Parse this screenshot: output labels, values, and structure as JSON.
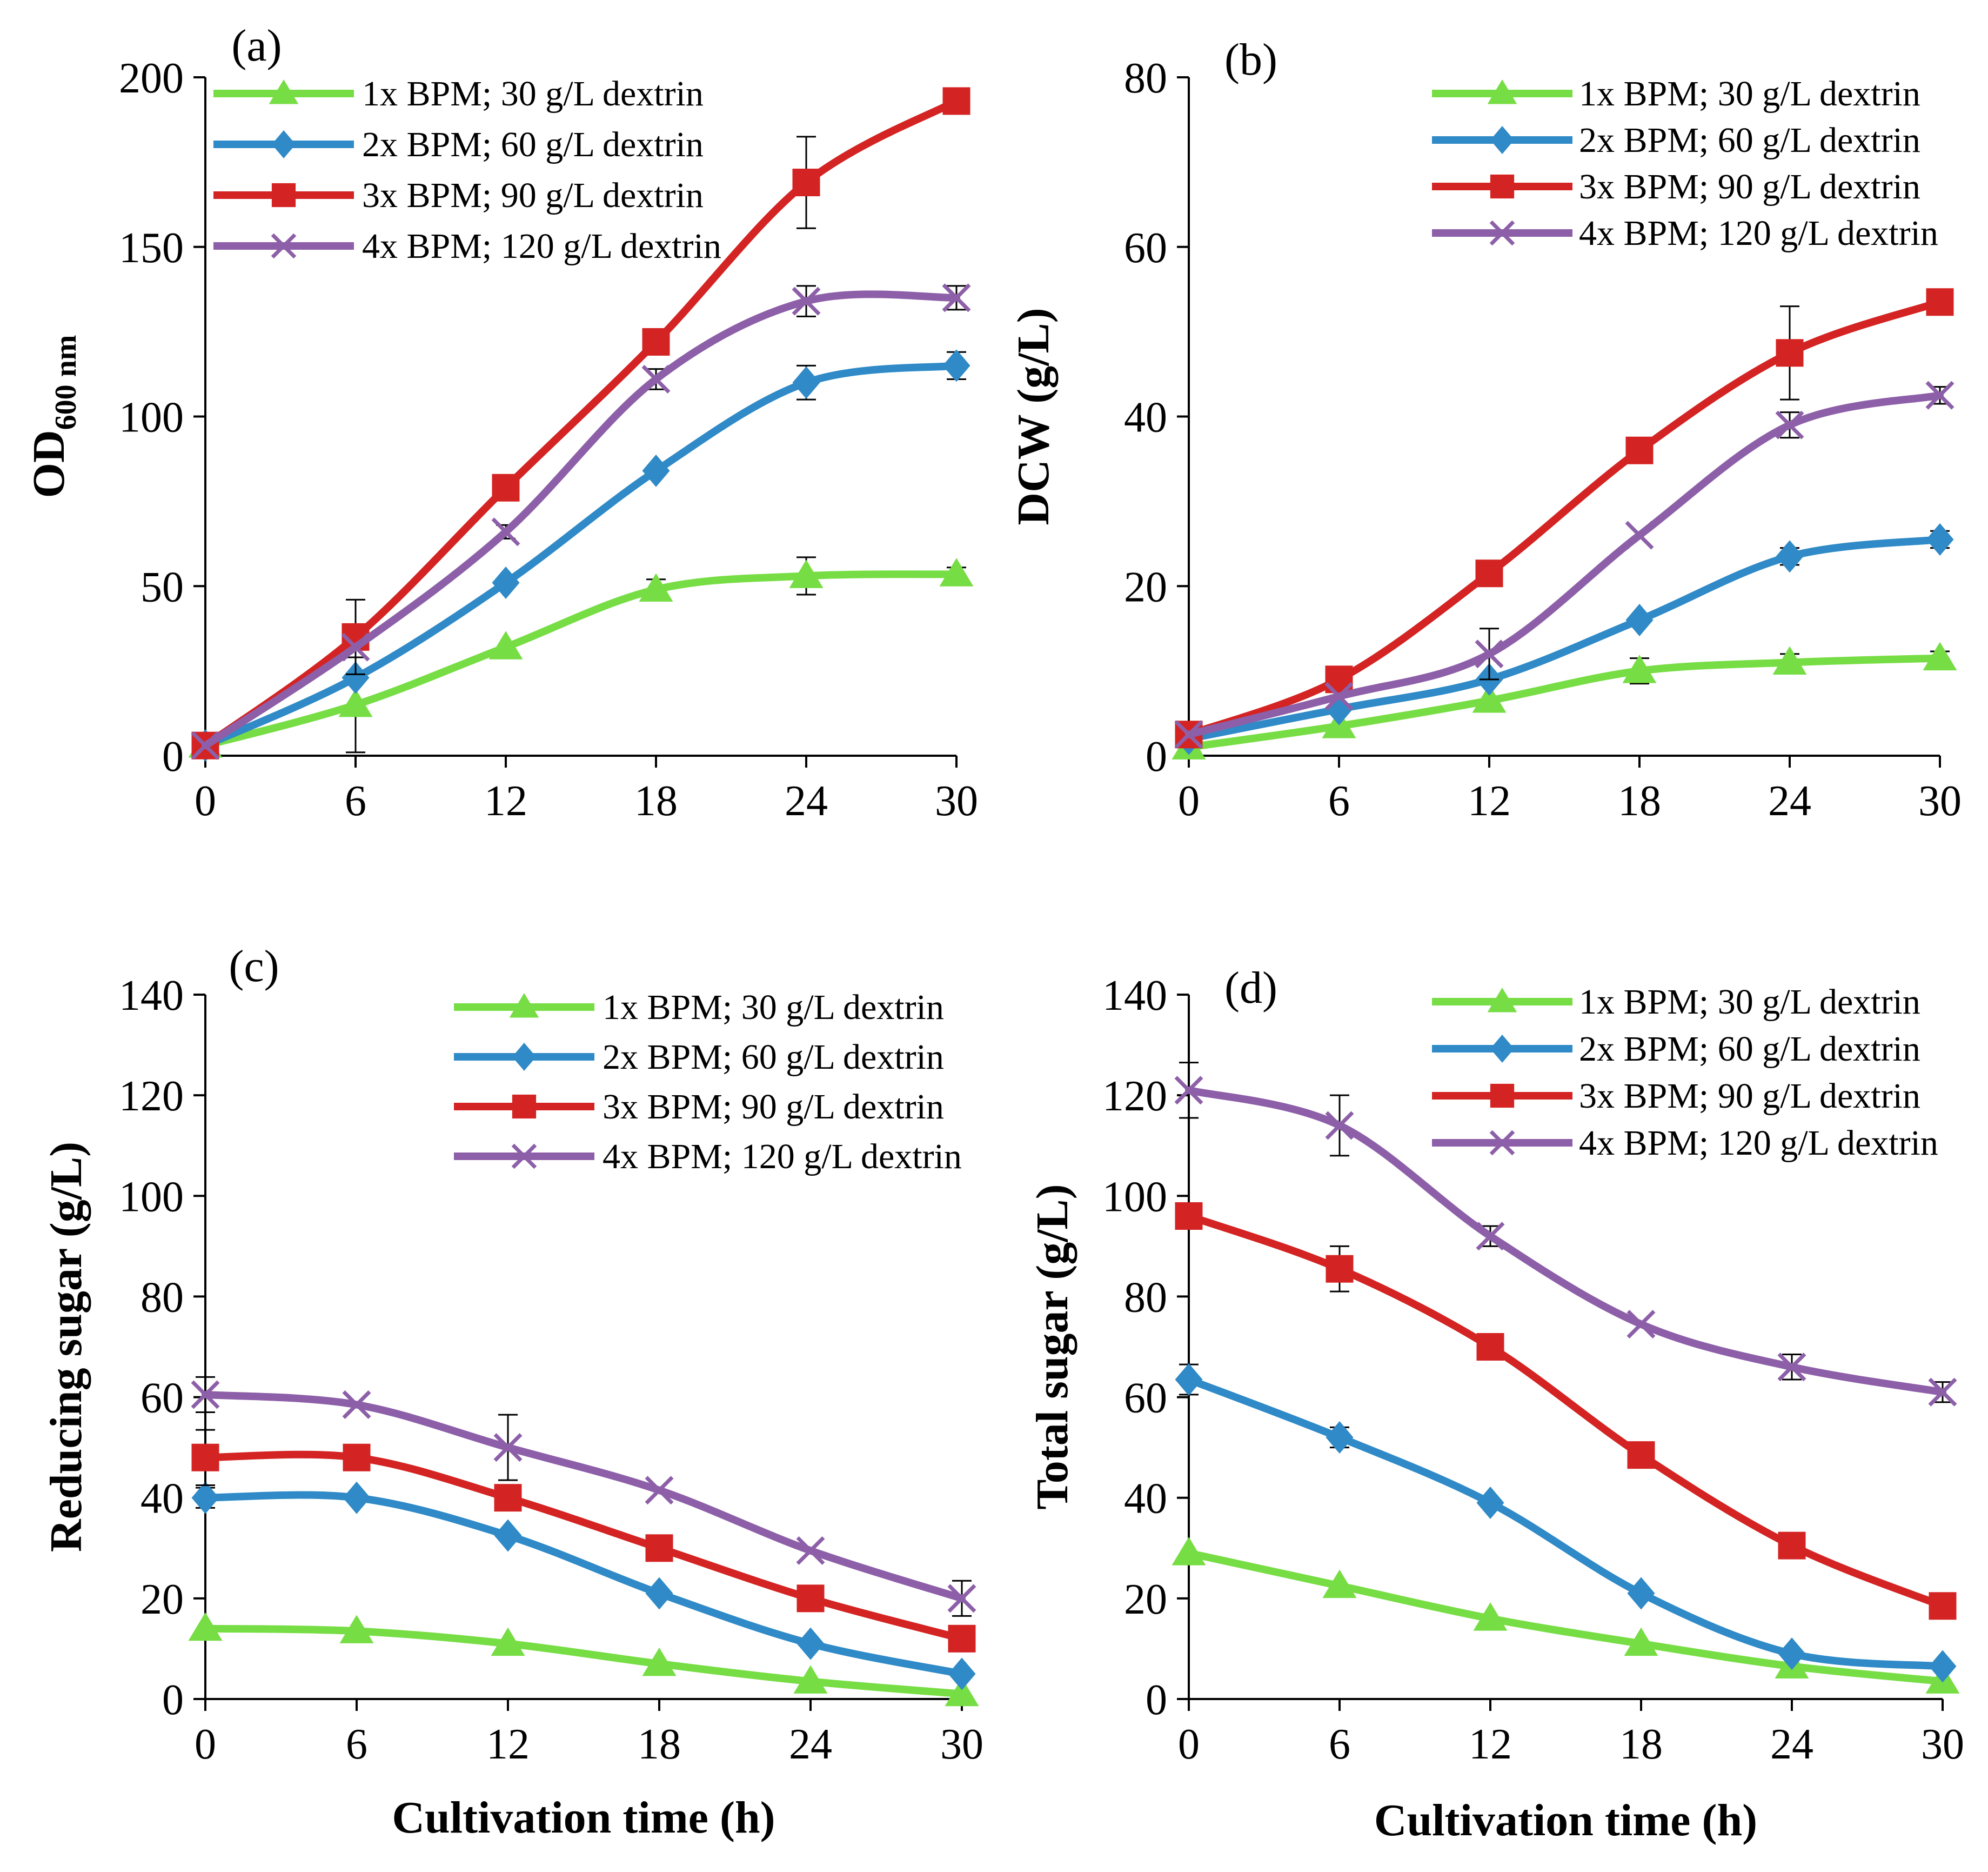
{
  "figure_title": "",
  "chart_data": [
    {
      "panel": "(a)",
      "type": "line",
      "title": "",
      "xlabel": "",
      "ylabel": "OD",
      "ylabel_sub": "600 nm",
      "ylim": [
        0,
        200
      ],
      "yticks": [
        0,
        50,
        100,
        150,
        200
      ],
      "xlim": [
        0,
        30
      ],
      "xticks": [
        0,
        6,
        12,
        18,
        24,
        30
      ],
      "legend_position": "top-left",
      "x": [
        0,
        6,
        12,
        18,
        24,
        30
      ],
      "series": [
        {
          "name": "1x BPM; 30 g/L dextrin",
          "color": "#77DD44",
          "marker": "triangle",
          "values": [
            3,
            15,
            32,
            49,
            53,
            53.5
          ],
          "errors": [
            0,
            14,
            0,
            3,
            5.5,
            2
          ]
        },
        {
          "name": "2x BPM; 60 g/L dextrin",
          "color": "#2F8AC7",
          "marker": "diamond",
          "values": [
            3,
            23,
            51,
            84,
            110,
            115
          ],
          "errors": [
            0,
            0,
            0,
            0,
            5,
            4
          ]
        },
        {
          "name": "3x BPM; 90 g/L dextrin",
          "color": "#D42323",
          "marker": "square",
          "values": [
            3,
            35,
            79,
            122,
            169,
            193
          ],
          "errors": [
            0,
            11,
            0,
            0,
            13.5,
            0
          ]
        },
        {
          "name": "4x BPM; 120 g/L dextrin",
          "color": "#8D5FA8",
          "marker": "x",
          "values": [
            3,
            32,
            66,
            111,
            134,
            135
          ],
          "errors": [
            0,
            0,
            2,
            3,
            4.5,
            3.5
          ]
        }
      ]
    },
    {
      "panel": "(b)",
      "type": "line",
      "title": "",
      "xlabel": "",
      "ylabel": "DCW (g/L)",
      "ylim": [
        0,
        80
      ],
      "yticks": [
        0,
        20,
        40,
        60,
        80
      ],
      "xlim": [
        0,
        30
      ],
      "xticks": [
        0,
        6,
        12,
        18,
        24,
        30
      ],
      "legend_position": "top-right",
      "x": [
        0,
        6,
        12,
        18,
        24,
        30
      ],
      "series": [
        {
          "name": "1x BPM; 30 g/L dextrin",
          "color": "#77DD44",
          "marker": "triangle",
          "values": [
            1,
            3.5,
            6.5,
            10,
            11,
            11.5
          ],
          "errors": [
            0,
            0,
            0,
            1.5,
            1,
            0.8
          ]
        },
        {
          "name": "2x BPM; 60 g/L dextrin",
          "color": "#2F8AC7",
          "marker": "diamond",
          "values": [
            2,
            5.5,
            9,
            16,
            23.5,
            25.5
          ],
          "errors": [
            0,
            0,
            0,
            0,
            1,
            1
          ]
        },
        {
          "name": "3x BPM; 90 g/L dextrin",
          "color": "#D42323",
          "marker": "square",
          "values": [
            2.5,
            9,
            21.5,
            36,
            47.5,
            53.5
          ],
          "errors": [
            0,
            0,
            0,
            0,
            5.5,
            0
          ]
        },
        {
          "name": "4x BPM; 120 g/L dextrin",
          "color": "#8D5FA8",
          "marker": "x",
          "values": [
            2.5,
            7,
            12,
            26,
            39,
            42.5
          ],
          "errors": [
            0,
            0,
            3,
            0,
            1.5,
            1
          ]
        }
      ]
    },
    {
      "panel": "(c)",
      "type": "line",
      "title": "",
      "xlabel": "Cultivation time (h)",
      "ylabel": "Reducing sugar (g/L)",
      "ylim": [
        0,
        140
      ],
      "yticks": [
        0,
        20,
        40,
        60,
        80,
        100,
        120,
        140
      ],
      "xlim": [
        0,
        30
      ],
      "xticks": [
        0,
        6,
        12,
        18,
        24,
        30
      ],
      "legend_position": "top-right",
      "x": [
        0,
        6,
        12,
        18,
        24,
        30
      ],
      "series": [
        {
          "name": "1x BPM; 30 g/L dextrin",
          "color": "#77DD44",
          "marker": "triangle",
          "values": [
            14,
            13.5,
            11,
            7,
            3.5,
            1
          ],
          "errors": [
            0,
            0,
            0,
            0,
            0,
            0
          ]
        },
        {
          "name": "2x BPM; 60 g/L dextrin",
          "color": "#2F8AC7",
          "marker": "diamond",
          "values": [
            40,
            40,
            32.5,
            21,
            11,
            5
          ],
          "errors": [
            2,
            0,
            0,
            0,
            0,
            0
          ]
        },
        {
          "name": "3x BPM; 90 g/L dextrin",
          "color": "#D42323",
          "marker": "square",
          "values": [
            48,
            48,
            40,
            30,
            20,
            12
          ],
          "errors": [
            5.5,
            0,
            0,
            0,
            0,
            0
          ]
        },
        {
          "name": "4x BPM; 120 g/L dextrin",
          "color": "#8D5FA8",
          "marker": "x",
          "values": [
            60.5,
            58.5,
            50,
            41.5,
            29.5,
            20
          ],
          "errors": [
            3.5,
            0,
            6.5,
            0,
            0,
            3.5
          ]
        }
      ]
    },
    {
      "panel": "(d)",
      "type": "line",
      "title": "",
      "xlabel": "Cultivation time (h)",
      "ylabel": "Total sugar (g/L)",
      "ylim": [
        0,
        140
      ],
      "yticks": [
        0,
        20,
        40,
        60,
        80,
        100,
        120,
        140
      ],
      "xlim": [
        0,
        30
      ],
      "xticks": [
        0,
        6,
        12,
        18,
        24,
        30
      ],
      "legend_position": "top-right",
      "x": [
        0,
        6,
        12,
        18,
        24,
        30
      ],
      "series": [
        {
          "name": "1x BPM; 30 g/L dextrin",
          "color": "#77DD44",
          "marker": "triangle",
          "values": [
            29,
            22.5,
            16,
            11,
            6.5,
            3.5
          ],
          "errors": [
            0,
            0,
            0,
            0,
            0,
            0
          ]
        },
        {
          "name": "2x BPM; 60 g/L dextrin",
          "color": "#2F8AC7",
          "marker": "diamond",
          "values": [
            63.5,
            52,
            39,
            21,
            9,
            6.5
          ],
          "errors": [
            3,
            2,
            0,
            0,
            0,
            0
          ]
        },
        {
          "name": "3x BPM; 90 g/L dextrin",
          "color": "#D42323",
          "marker": "square",
          "values": [
            96,
            85.5,
            70,
            48.5,
            30.5,
            18.5
          ],
          "errors": [
            0,
            4.5,
            0,
            0,
            0,
            0
          ]
        },
        {
          "name": "4x BPM; 120 g/L dextrin",
          "color": "#8D5FA8",
          "marker": "x",
          "values": [
            121,
            114,
            92,
            74.5,
            66,
            61
          ],
          "errors": [
            5.5,
            6,
            2,
            0,
            2.5,
            2
          ]
        }
      ]
    }
  ]
}
